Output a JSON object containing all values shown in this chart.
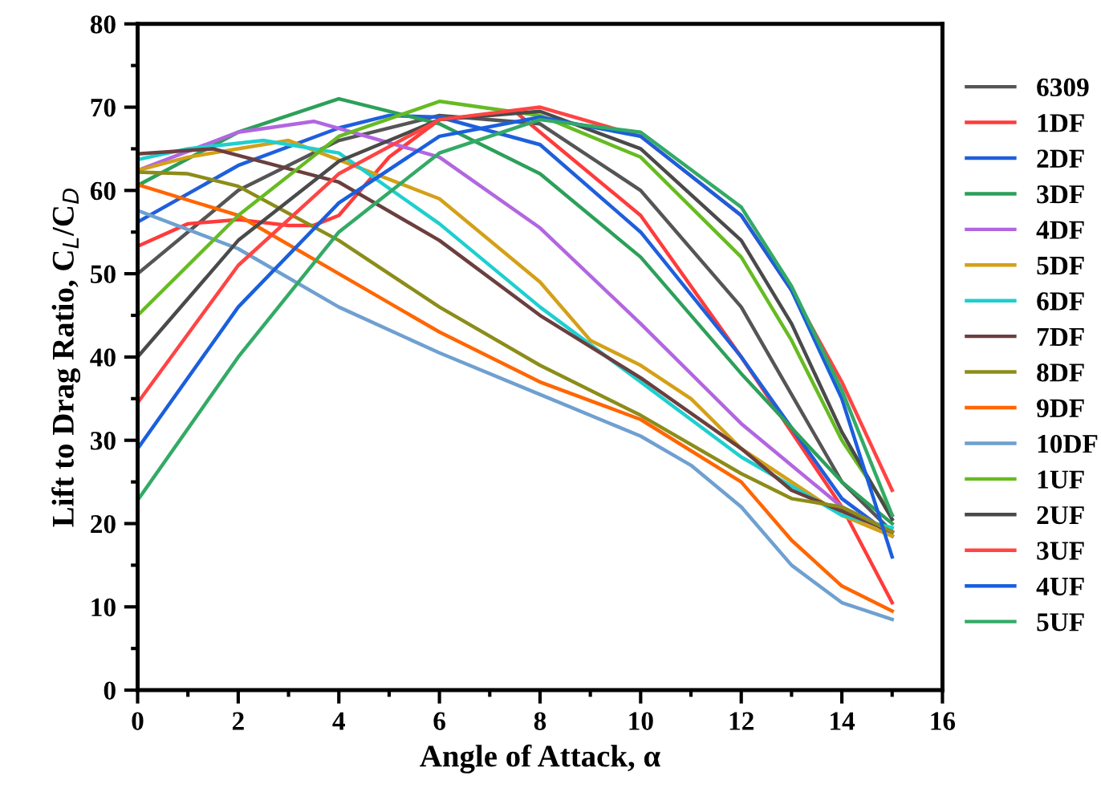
{
  "chart_data": {
    "type": "line",
    "xlabel": "Angle of Attack, α",
    "ylabel": "Lift to Drag Ratio, C$_{L}$/C$_{D}$",
    "xlim": [
      0,
      16
    ],
    "xticks": [
      0,
      2,
      4,
      6,
      8,
      10,
      12,
      14,
      16
    ],
    "ylim": [
      0,
      80
    ],
    "yticks": [
      0,
      10,
      20,
      30,
      40,
      50,
      60,
      70,
      80
    ],
    "grid": false,
    "legend": "right",
    "marker": "none",
    "line_style": "solid",
    "series": [
      {
        "name": "6309",
        "color": "#555555",
        "x": [
          0,
          2,
          4,
          6,
          8,
          10,
          12,
          14,
          15
        ],
        "values": [
          50,
          60,
          66,
          69,
          68,
          60,
          46,
          25,
          19
        ]
      },
      {
        "name": "1DF",
        "color": "#ff3b3b",
        "x": [
          0,
          1,
          2,
          3,
          3.5,
          4,
          5,
          6,
          7.5,
          10,
          12,
          14,
          15
        ],
        "values": [
          53.3,
          56,
          56.5,
          55.8,
          55.8,
          57,
          64,
          68.5,
          69.5,
          57,
          40,
          22,
          10.5
        ]
      },
      {
        "name": "2DF",
        "color": "#1f5fdc",
        "x": [
          0,
          2,
          4,
          5,
          6,
          8,
          10,
          12,
          14,
          15
        ],
        "values": [
          56.2,
          63,
          67.5,
          69,
          68.8,
          65.5,
          55,
          40,
          23,
          18.5
        ]
      },
      {
        "name": "3DF",
        "color": "#2ca05a",
        "x": [
          0,
          2,
          4,
          6,
          8,
          10,
          12,
          14,
          15
        ],
        "values": [
          60.6,
          67,
          71,
          68,
          62,
          52,
          38,
          25,
          20
        ]
      },
      {
        "name": "4DF",
        "color": "#b266e0",
        "x": [
          0,
          2,
          3.5,
          6,
          8,
          10,
          12,
          14,
          15
        ],
        "values": [
          62.4,
          67,
          68.3,
          64,
          55.5,
          44,
          32,
          22,
          19
        ]
      },
      {
        "name": "5DF",
        "color": "#d4a017",
        "x": [
          0,
          1,
          3,
          6,
          8,
          9,
          10,
          11,
          12,
          14,
          15
        ],
        "values": [
          62.4,
          64,
          66,
          59,
          49,
          42,
          39,
          35,
          29,
          21,
          18.5
        ]
      },
      {
        "name": "6DF",
        "color": "#1fcfcf",
        "x": [
          0,
          1,
          2.5,
          4,
          6,
          8,
          10,
          12,
          14,
          15
        ],
        "values": [
          63.7,
          65,
          66,
          64.5,
          56,
          46,
          37,
          28,
          21,
          19.5
        ]
      },
      {
        "name": "7DF",
        "color": "#6b3f3f",
        "x": [
          0,
          1.5,
          4,
          6,
          8,
          10,
          12,
          13,
          14,
          15
        ],
        "values": [
          64.4,
          65,
          61,
          54,
          45,
          37.5,
          29,
          24,
          21.5,
          19
        ]
      },
      {
        "name": "8DF",
        "color": "#8c8c1a",
        "x": [
          0,
          1,
          2,
          4,
          6,
          8,
          10,
          12,
          13,
          14,
          15
        ],
        "values": [
          62.2,
          62,
          60.5,
          54,
          46,
          39,
          33,
          26,
          23,
          22,
          19
        ]
      },
      {
        "name": "9DF",
        "color": "#ff6600",
        "x": [
          0,
          2,
          4,
          6,
          8,
          10,
          12,
          13,
          14,
          15
        ],
        "values": [
          60.7,
          57,
          50,
          43,
          37,
          32.5,
          25,
          18,
          12.5,
          9.5
        ]
      },
      {
        "name": "10DF",
        "color": "#6fa0d0",
        "x": [
          0,
          2,
          4,
          6,
          8,
          10,
          11,
          12,
          13,
          14,
          15
        ],
        "values": [
          57.6,
          53,
          46,
          40.5,
          35.5,
          30.5,
          27,
          22,
          15,
          10.5,
          8.5
        ]
      },
      {
        "name": "1UF",
        "color": "#66bb22",
        "x": [
          0,
          2,
          4,
          6,
          8,
          10,
          12,
          13,
          14,
          15
        ],
        "values": [
          45,
          57,
          66.5,
          70.7,
          69,
          64,
          52,
          42,
          30,
          21
        ]
      },
      {
        "name": "2UF",
        "color": "#4a4a4a",
        "x": [
          0,
          2,
          4,
          6,
          8,
          10,
          12,
          13,
          14,
          15
        ],
        "values": [
          40,
          54,
          63.5,
          68.5,
          69.5,
          65,
          54,
          44,
          31,
          20.5
        ]
      },
      {
        "name": "3UF",
        "color": "#ff4444",
        "x": [
          0,
          2,
          4,
          6,
          8,
          10,
          12,
          13,
          14,
          15
        ],
        "values": [
          34.5,
          51,
          62,
          68.5,
          70,
          66.5,
          57,
          48,
          37,
          24
        ]
      },
      {
        "name": "4UF",
        "color": "#1a5fdd",
        "x": [
          0,
          2,
          4,
          6,
          8,
          10,
          12,
          13,
          14,
          15
        ],
        "values": [
          29,
          46,
          58.5,
          66.5,
          68.8,
          66.5,
          57,
          48,
          35,
          16
        ]
      },
      {
        "name": "5UF",
        "color": "#33aa66",
        "x": [
          0,
          2,
          4,
          6,
          8,
          10,
          12,
          13,
          14,
          15
        ],
        "values": [
          22.8,
          40,
          55,
          64.5,
          68.5,
          67,
          58,
          48.5,
          36,
          21
        ]
      }
    ]
  }
}
